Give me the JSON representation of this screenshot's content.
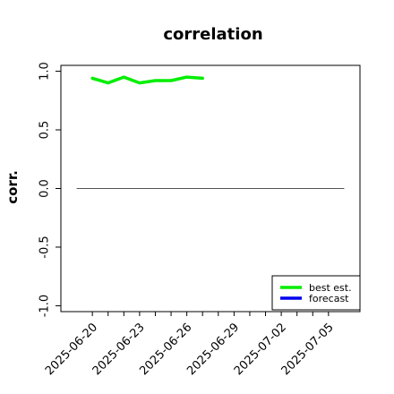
{
  "chart_data": {
    "type": "line",
    "title": "correlation",
    "ylabel": "corr.",
    "xlabel": "",
    "ylim": [
      -1.05,
      1.05
    ],
    "xlim": [
      "2025-06-18",
      "2025-07-07"
    ],
    "yticks": [
      1.0,
      0.5,
      0.0,
      -0.5,
      -1.0
    ],
    "ytick_labels": [
      "1.0",
      "0.5",
      "0.0",
      "-0.5",
      "-1.0"
    ],
    "xticks": [
      "2025-06-20",
      "2025-06-21",
      "2025-06-22",
      "2025-06-23",
      "2025-06-24",
      "2025-06-25",
      "2025-06-26",
      "2025-06-27",
      "2025-06-28",
      "2025-06-29",
      "2025-06-30",
      "2025-07-01",
      "2025-07-02",
      "2025-07-03",
      "2025-07-04",
      "2025-07-05"
    ],
    "xtick_labels": [
      "2025-06-20",
      "2025-06-23",
      "2025-06-26",
      "2025-06-29",
      "2025-07-02",
      "2025-07-05"
    ],
    "highlight_tick": "2025-06-26",
    "highlight_color": "#228b22",
    "zero_line": {
      "y": 0,
      "from": "2025-06-19",
      "to": "2025-07-06",
      "color": "#555555"
    },
    "series": [
      {
        "name": "best est.",
        "color": "#00ee00",
        "x": [
          "2025-06-20",
          "2025-06-21",
          "2025-06-22",
          "2025-06-23",
          "2025-06-24",
          "2025-06-25",
          "2025-06-26",
          "2025-06-27"
        ],
        "values": [
          0.94,
          0.9,
          0.95,
          0.9,
          0.92,
          0.92,
          0.95,
          0.94
        ]
      },
      {
        "name": "forecast",
        "color": "#0000ee",
        "x": [],
        "values": []
      }
    ],
    "legend_position": "bottom-right",
    "grid": false
  }
}
